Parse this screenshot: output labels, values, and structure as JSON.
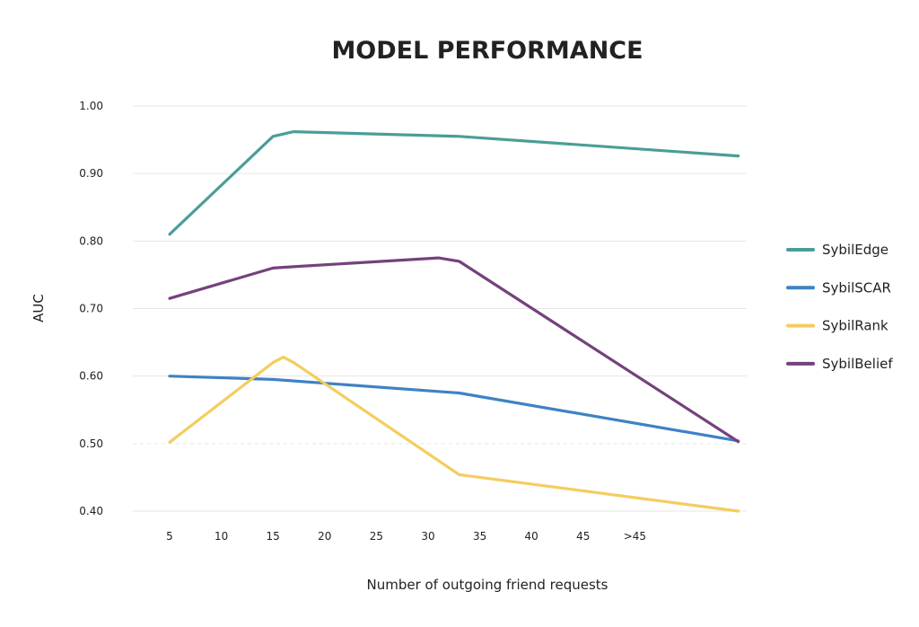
{
  "chart_data": {
    "type": "line",
    "title": "MODEL PERFORMANCE",
    "xlabel": "Number of outgoing friend requests",
    "ylabel": "AUC",
    "x_ticks": [
      "5",
      "10",
      "15",
      "20",
      "25",
      "30",
      "35",
      "40",
      "45",
      ">45"
    ],
    "y_ticks": [
      "1.00",
      "0.90",
      "0.80",
      "0.70",
      "0.60",
      "0.50",
      "0.40"
    ],
    "ylim": [
      0.4,
      1.0
    ],
    "grid": true,
    "legend_position": "right",
    "series": [
      {
        "name": "SybilEdge",
        "color": "#4a9e96",
        "points": [
          [
            5,
            0.81
          ],
          [
            15,
            0.955
          ],
          [
            17,
            0.962
          ],
          [
            33,
            0.955
          ],
          [
            60,
            0.926
          ]
        ]
      },
      {
        "name": "SybilSCAR",
        "color": "#3e82c4",
        "points": [
          [
            5,
            0.6
          ],
          [
            15,
            0.595
          ],
          [
            33,
            0.575
          ],
          [
            60,
            0.504
          ]
        ]
      },
      {
        "name": "SybilRank",
        "color": "#f3cd5e",
        "points": [
          [
            5,
            0.502
          ],
          [
            15,
            0.62
          ],
          [
            16,
            0.628
          ],
          [
            17,
            0.62
          ],
          [
            33,
            0.454
          ],
          [
            60,
            0.4
          ]
        ]
      },
      {
        "name": "SybilBelief",
        "color": "#74427c",
        "points": [
          [
            5,
            0.715
          ],
          [
            15,
            0.76
          ],
          [
            17,
            0.762
          ],
          [
            31,
            0.775
          ],
          [
            33,
            0.77
          ],
          [
            60,
            0.503
          ]
        ]
      }
    ]
  }
}
